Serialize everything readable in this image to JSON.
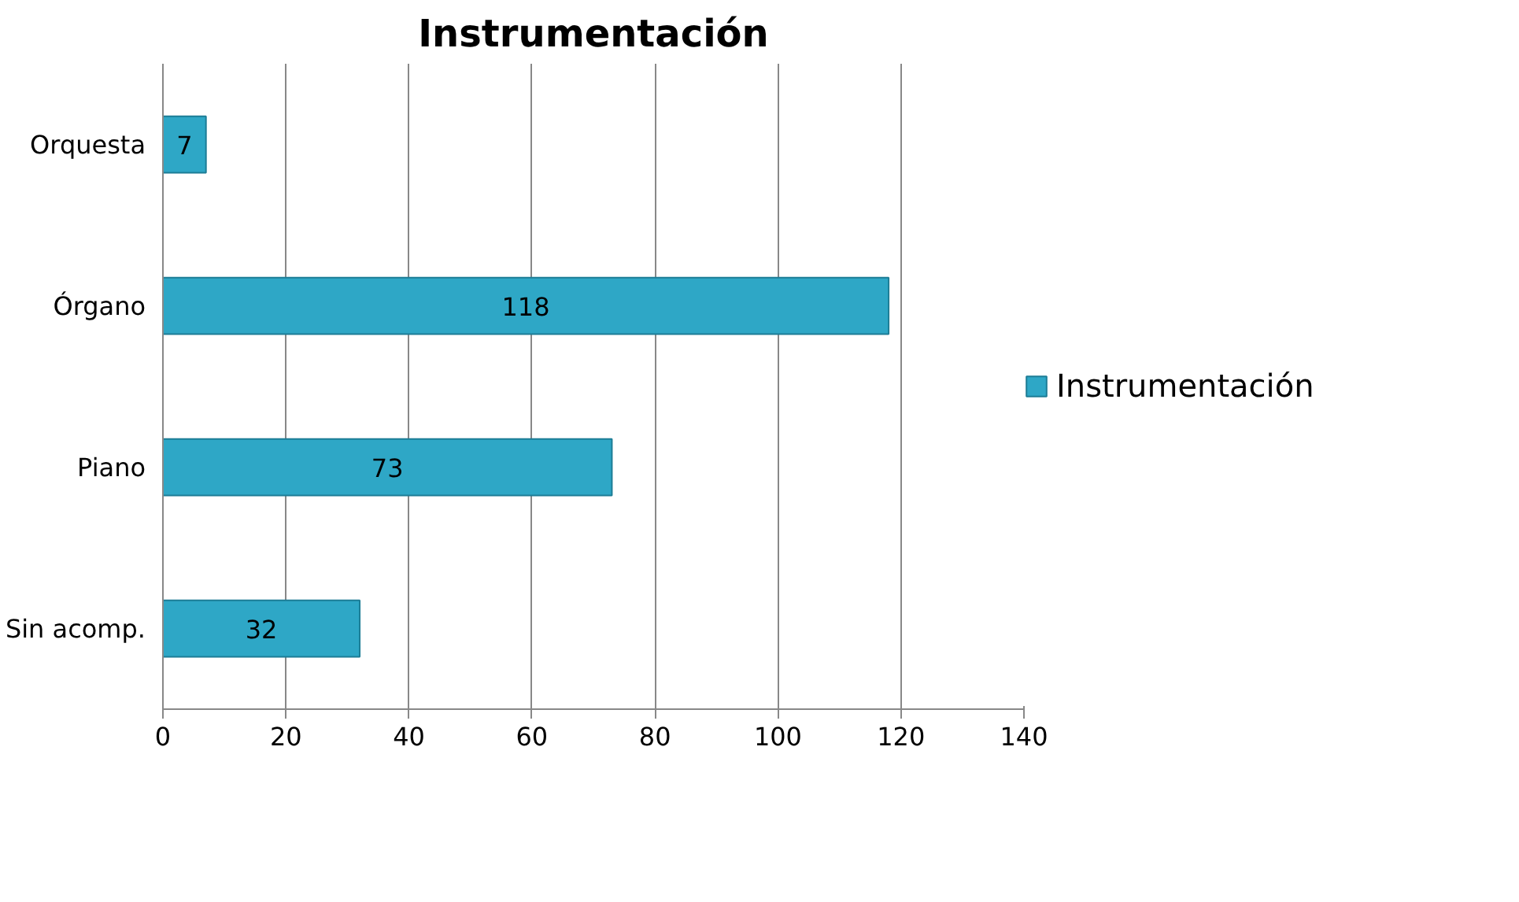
{
  "chart_data": {
    "type": "bar",
    "orientation": "horizontal",
    "title": "Instrumentación",
    "categories": [
      "Orquesta",
      "Órgano",
      "Piano",
      "Sin acomp."
    ],
    "series": [
      {
        "name": "Instrumentación",
        "color": "#2ea7c6",
        "values": [
          7,
          118,
          73,
          32
        ]
      }
    ],
    "xlim": [
      0,
      140
    ],
    "xticks": [
      0,
      20,
      40,
      60,
      80,
      100,
      120,
      140
    ],
    "grid": "x",
    "legend": "right",
    "data_labels": true
  }
}
